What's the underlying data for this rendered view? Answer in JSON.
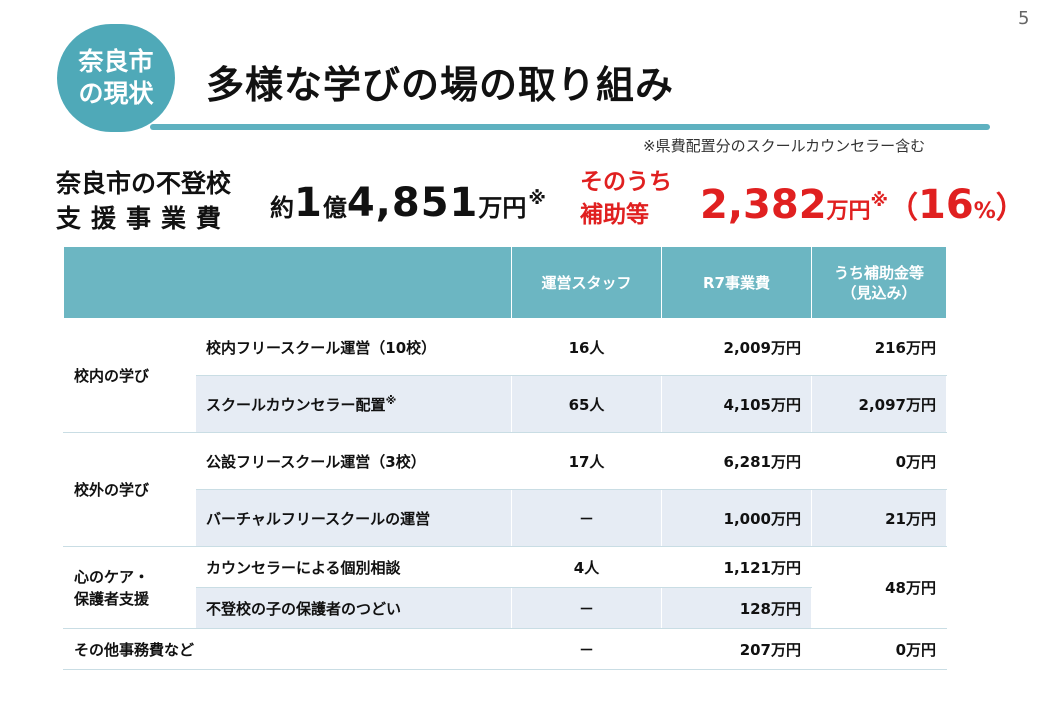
{
  "page_number": "5",
  "badge": {
    "line1": "奈良市",
    "line2": "の現状"
  },
  "title": "多様な学びの場の取り組み",
  "footnote": "※県費配置分のスクールカウンセラー含む",
  "cost_label": {
    "line1": "奈良市の不登校",
    "line2": "支援事業費"
  },
  "total": {
    "prefix": "約",
    "n1": "1",
    "unit1": "億",
    "n2": "4,851",
    "unit2": "万円",
    "mark": "※"
  },
  "subsidy": {
    "label_line1": "そのうち",
    "label_line2": "補助等",
    "amount": "2,382",
    "unit": "万円",
    "mark": "※",
    "paren_open": "（",
    "percent": "16",
    "percent_unit": "%",
    "paren_close": "）"
  },
  "table": {
    "headers": [
      "",
      "運営スタッフ",
      "R7事業費",
      "うち補助金等\n（見込み）"
    ],
    "categories": [
      "校内の学び",
      "校外の学び",
      "心のケア・\n保護者支援"
    ],
    "rows": [
      {
        "item": "校内フリースクール運営（10校）",
        "staff": "16人",
        "cost": "2,009万円",
        "subsidy": "216万円"
      },
      {
        "item": "スクールカウンセラー配置",
        "item_mark": "※",
        "staff": "65人",
        "cost": "4,105万円",
        "subsidy": "2,097万円"
      },
      {
        "item": "公設フリースクール運営（3校）",
        "staff": "17人",
        "cost": "6,281万円",
        "subsidy": "0万円"
      },
      {
        "item": "バーチャルフリースクールの運営",
        "staff": "－",
        "cost": "1,000万円",
        "subsidy": "21万円"
      },
      {
        "item": "カウンセラーによる個別相談",
        "staff": "4人",
        "cost": "1,121万円",
        "subsidy": "48万円"
      },
      {
        "item": "不登校の子の保護者のつどい",
        "staff": "－",
        "cost": "128万円"
      },
      {
        "item": "その他事務費など",
        "staff": "－",
        "cost": "207万円",
        "subsidy": "0万円"
      }
    ]
  }
}
